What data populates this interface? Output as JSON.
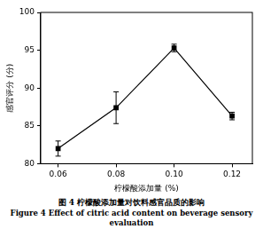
{
  "chart_data": {
    "type": "line",
    "title": "图 4 柠檬酸添加量对饮料感官品质的影响",
    "subtitle": "Figure 4 Effect of citric acid content on beverage sensory evaluation",
    "xlabel": "柠檬酸添加量 (%)",
    "ylabel": "感官评分 (分)",
    "x": [
      0.06,
      0.08,
      0.1,
      0.12
    ],
    "values": [
      82.0,
      87.4,
      95.3,
      86.3
    ],
    "error": [
      1.0,
      2.1,
      0.5,
      0.5
    ],
    "color": "#000000",
    "marker": "square",
    "xlim": [
      0.054,
      0.127
    ],
    "xticks": [
      0.06,
      0.08,
      {
        "value": 0.1,
        "label": "0.10"
      },
      0.12
    ],
    "ylim": [
      80,
      100
    ],
    "yticks": [
      80,
      85,
      90,
      95,
      100
    ],
    "grid": false
  }
}
